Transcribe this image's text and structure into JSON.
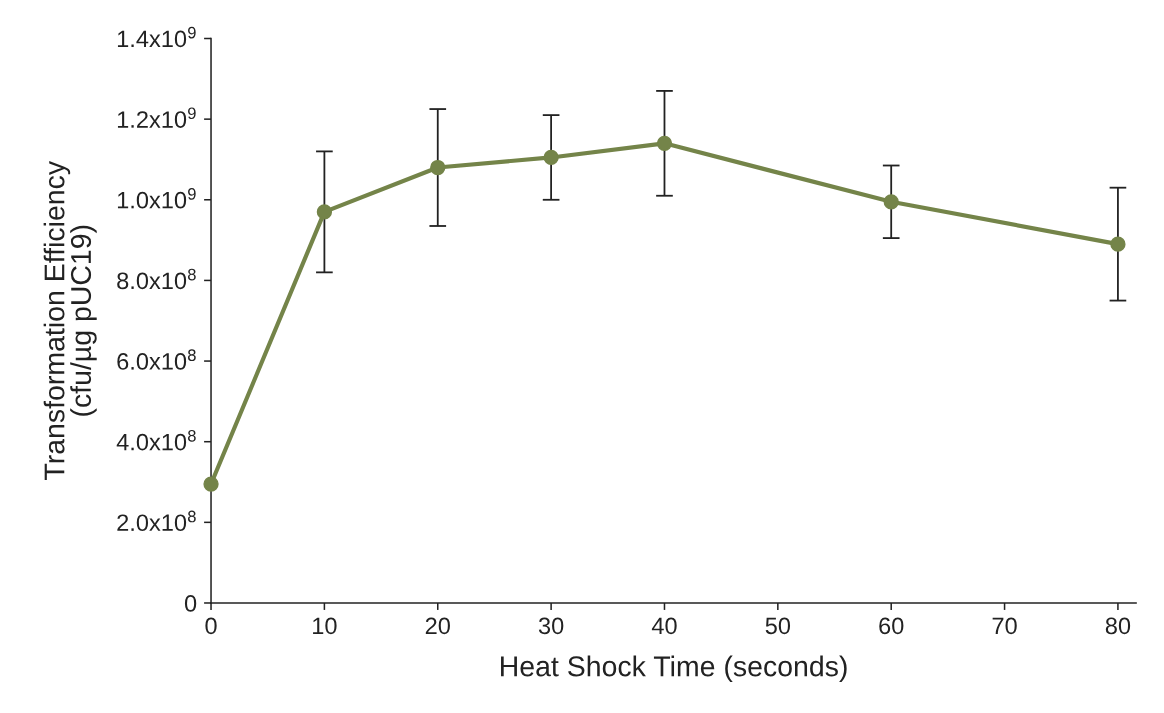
{
  "chart_data": {
    "type": "line",
    "xlabel": "Heat Shock Time (seconds)",
    "ylabel": "Transformation Efficiency\n(cfu/µg pUC19)",
    "x": [
      0,
      10,
      20,
      30,
      40,
      60,
      80
    ],
    "series": [
      {
        "color": "#748449",
        "values": [
          295000000,
          970000000,
          1080000000,
          1105000000,
          1140000000,
          995000000,
          890000000
        ],
        "errors": [
          null,
          150000000,
          145000000,
          105000000,
          130000000,
          90000000,
          140000000
        ]
      }
    ],
    "marker": "circle",
    "line_style": "solid",
    "xlim": [
      0,
      81.6
    ],
    "xticks": [
      0,
      10,
      20,
      30,
      40,
      50,
      60,
      70,
      80
    ],
    "ylim": [
      0,
      1400000000
    ],
    "yticks": [
      0,
      {
        "value": 200000000,
        "label": "2.0x10$^{8}$"
      },
      {
        "value": 400000000,
        "label": "4.0x10$^{8}$"
      },
      {
        "value": 600000000,
        "label": "6.0x10$^{8}$"
      },
      {
        "value": 800000000,
        "label": "8.0x10$^{8}$"
      },
      {
        "value": 1000000000,
        "label": "1.0x10$^{9}$"
      },
      {
        "value": 1200000000,
        "label": "1.2x10$^{9}$"
      },
      {
        "value": 1400000000,
        "label": "1.4x10$^{9}$"
      }
    ]
  }
}
